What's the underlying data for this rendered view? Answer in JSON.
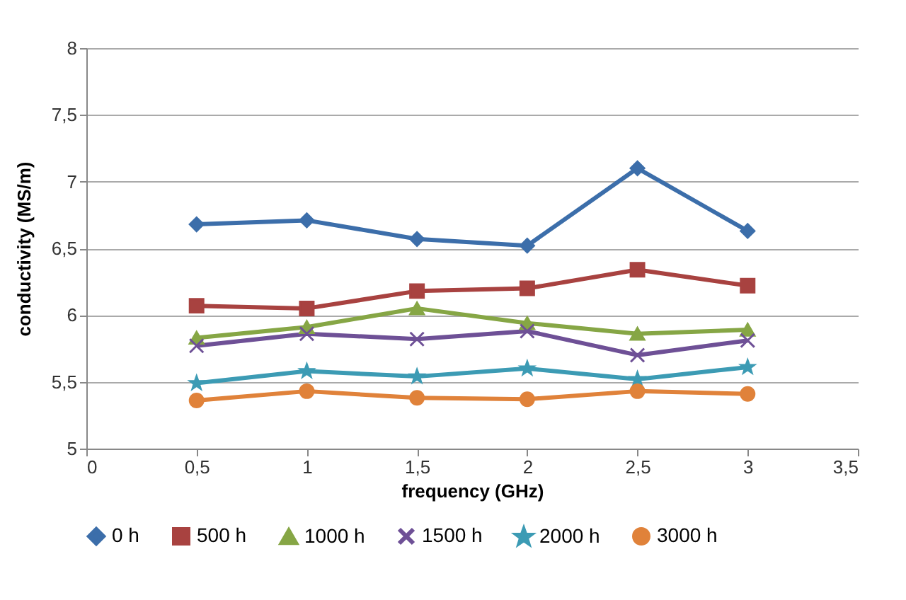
{
  "chart_data": {
    "type": "line",
    "xlabel": "frequency (GHz)",
    "ylabel": "conductivity (MS/m)",
    "x": [
      0.5,
      1,
      1.5,
      2,
      2.5,
      3
    ],
    "xlim": [
      0,
      3.5
    ],
    "xticks": [
      0,
      {
        "value": 0.5,
        "label": "0,5"
      },
      1,
      {
        "value": 1.5,
        "label": "1,5"
      },
      2,
      {
        "value": 2.5,
        "label": "2,5"
      },
      3,
      {
        "value": 3.5,
        "label": "3,5"
      }
    ],
    "ylim": [
      5,
      8
    ],
    "yticks": [
      5,
      {
        "value": 5.5,
        "label": "5,5"
      },
      6,
      {
        "value": 6.5,
        "label": "6,5"
      },
      7,
      {
        "value": 7.5,
        "label": "7,5"
      },
      8
    ],
    "grid": "y",
    "legend": "bottom",
    "line_style": "solid",
    "series": [
      {
        "name": "0 h",
        "color": "#3c6eaa",
        "marker": "diamond",
        "values": [
          6.68,
          6.71,
          6.57,
          6.52,
          7.1,
          6.63
        ]
      },
      {
        "name": "500 h",
        "color": "#a84240",
        "marker": "square",
        "values": [
          6.07,
          6.05,
          6.18,
          6.2,
          6.34,
          6.22
        ]
      },
      {
        "name": "1000 h",
        "color": "#86a645",
        "marker": "triangle",
        "values": [
          5.83,
          5.91,
          6.05,
          5.94,
          5.86,
          5.89
        ]
      },
      {
        "name": "1500 h",
        "color": "#6e5096",
        "marker": "cross",
        "values": [
          5.77,
          5.86,
          5.82,
          5.88,
          5.7,
          5.81
        ]
      },
      {
        "name": "2000 h",
        "color": "#3c9bb4",
        "marker": "star",
        "values": [
          5.49,
          5.58,
          5.54,
          5.6,
          5.52,
          5.61
        ]
      },
      {
        "name": "3000 h",
        "color": "#e0823a",
        "marker": "circle",
        "values": [
          5.36,
          5.43,
          5.38,
          5.37,
          5.43,
          5.41
        ]
      }
    ]
  }
}
